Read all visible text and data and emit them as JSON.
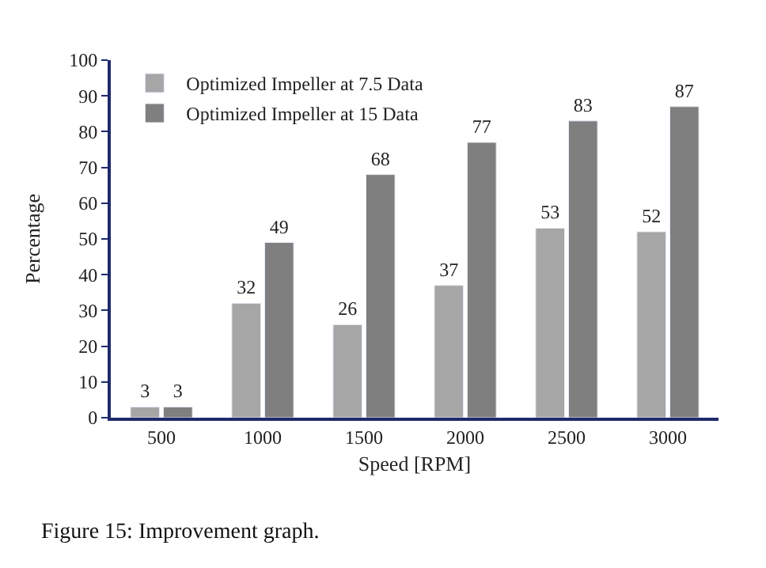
{
  "chart_data": {
    "type": "bar",
    "xlabel": "Speed [RPM]",
    "ylabel": "Percentage",
    "categories": [
      "500",
      "1000",
      "1500",
      "2000",
      "2500",
      "3000"
    ],
    "series": [
      {
        "name": "Optimized Impeller at 7.5 Data",
        "color": "#a6a6a6",
        "values": [
          3,
          32,
          26,
          37,
          53,
          52
        ]
      },
      {
        "name": "Optimized Impeller at 15 Data",
        "color": "#7f7f7f",
        "values": [
          3,
          49,
          68,
          77,
          83,
          87
        ]
      }
    ],
    "ylim": [
      0,
      100
    ],
    "yticks": [
      0,
      10,
      20,
      30,
      40,
      50,
      60,
      70,
      80,
      90,
      100
    ],
    "data_labels": true,
    "legend": "top left",
    "annotations": [
      "Figure 15: Improvement graph."
    ]
  }
}
